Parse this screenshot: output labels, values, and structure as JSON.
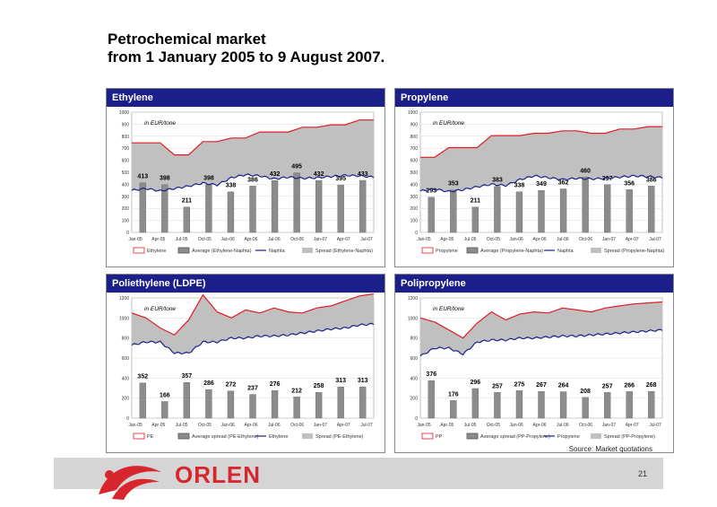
{
  "title_line1": "Petrochemical market",
  "title_line2": "from 1 January 2005 to  9 August 2007.",
  "source": "Source: Market quotations",
  "brand": "ORLEN",
  "page_number": "21",
  "chart_data": [
    {
      "type": "bar",
      "title": "Ethylene",
      "unit_label": "in EUR/tone",
      "ylim": [
        0,
        1000
      ],
      "yticks": [
        0,
        100,
        200,
        300,
        400,
        500,
        600,
        700,
        800,
        900,
        1000
      ],
      "xlabels": [
        "Jan-05",
        "Apr-05",
        "Jul-05",
        "Oct-05",
        "Jan-06",
        "Apr-06",
        "Jul-06",
        "Oct-06",
        "Jan-07",
        "Apr-07",
        "Jul-07"
      ],
      "bar_values": [
        413,
        398,
        211,
        398,
        338,
        386,
        432,
        495,
        432,
        395,
        433
      ],
      "price_series": [
        745,
        745,
        745,
        645,
        645,
        755,
        755,
        785,
        785,
        835,
        835,
        835,
        875,
        875,
        895,
        895,
        935,
        935
      ],
      "feed_series": [
        350,
        365,
        345,
        365,
        385,
        410,
        395,
        455,
        480,
        470,
        445,
        460,
        450,
        455,
        465,
        475,
        470,
        460
      ],
      "legend": [
        "Ethylene",
        "Average (Ethylene-Naphta)",
        "Naphta",
        "Spread (Ethylene-Naphta)"
      ],
      "colors": {
        "price": "#e31b23",
        "feed": "#1b1f8a",
        "spread": "#c0c0c0",
        "bars": "#8c8c8c"
      }
    },
    {
      "type": "bar",
      "title": "Propylene",
      "unit_label": "in EUR/tone",
      "ylim": [
        0,
        1000
      ],
      "yticks": [
        0,
        100,
        200,
        300,
        400,
        500,
        600,
        700,
        800,
        900,
        1000
      ],
      "xlabels": [
        "Jan-05",
        "Apr-05",
        "Jul-05",
        "Oct-05",
        "Jan-06",
        "Apr-06",
        "Jul-06",
        "Oct-06",
        "Jan-07",
        "Apr-07",
        "Jul-07"
      ],
      "bar_values": [
        293,
        353,
        211,
        383,
        338,
        349,
        362,
        460,
        397,
        356,
        386
      ],
      "price_series": [
        625,
        625,
        705,
        705,
        705,
        805,
        805,
        805,
        825,
        825,
        845,
        845,
        825,
        825,
        860,
        860,
        880,
        880
      ],
      "feed_series": [
        345,
        360,
        340,
        355,
        380,
        400,
        390,
        440,
        470,
        455,
        440,
        450,
        445,
        450,
        460,
        470,
        465,
        455
      ],
      "legend": [
        "Propylene",
        "Average (Propylene-Naphta)",
        "Naphta",
        "Spread (Propylene-Naphta)"
      ],
      "colors": {
        "price": "#e31b23",
        "feed": "#1b1f8a",
        "spread": "#c0c0c0",
        "bars": "#8c8c8c"
      }
    },
    {
      "type": "bar",
      "title": "Poliethylene (LDPE)",
      "unit_label": "in EUR/tone",
      "ylim": [
        0,
        1200
      ],
      "yticks": [
        0,
        200,
        400,
        600,
        800,
        1000,
        1200
      ],
      "xlabels": [
        "Jan-05",
        "Apr-05",
        "Jul-05",
        "Oct-05",
        "Jan-06",
        "Apr-06",
        "Jul-06",
        "Oct-06",
        "Jan-07",
        "Apr-07",
        "Jul-07"
      ],
      "bar_values": [
        352,
        166,
        357,
        286,
        272,
        237,
        276,
        212,
        258,
        313,
        313
      ],
      "price_series": [
        1050,
        1000,
        900,
        830,
        980,
        1230,
        1060,
        1000,
        1080,
        1050,
        1100,
        1060,
        1050,
        1100,
        1120,
        1170,
        1220,
        1240
      ],
      "feed_series": [
        730,
        760,
        760,
        650,
        650,
        760,
        760,
        800,
        800,
        820,
        820,
        830,
        850,
        870,
        890,
        900,
        930,
        940
      ],
      "legend": [
        "PE",
        "Average spread (PE-Ethylene)",
        "Ethylene",
        "Spread (PE-Ethylene)"
      ],
      "colors": {
        "price": "#e31b23",
        "feed": "#1b1f8a",
        "spread": "#c0c0c0",
        "bars": "#8c8c8c"
      }
    },
    {
      "type": "bar",
      "title": "Polipropylene",
      "unit_label": "in EUR/tone",
      "ylim": [
        0,
        1200
      ],
      "yticks": [
        0,
        200,
        400,
        600,
        800,
        1000,
        1200
      ],
      "xlabels": [
        "Jan-05",
        "Apr-05",
        "Jul-05",
        "Oct-05",
        "Jan-06",
        "Apr-06",
        "Jul-06",
        "Oct-06",
        "Jan-07",
        "Apr-07",
        "Jul-07"
      ],
      "bar_values": [
        376,
        176,
        296,
        257,
        275,
        267,
        264,
        208,
        257,
        266,
        268
      ],
      "price_series": [
        1000,
        960,
        880,
        800,
        950,
        1060,
        980,
        1040,
        1060,
        1050,
        1100,
        1080,
        1060,
        1100,
        1120,
        1140,
        1150,
        1160
      ],
      "feed_series": [
        620,
        700,
        700,
        640,
        760,
        780,
        780,
        800,
        800,
        810,
        820,
        820,
        830,
        840,
        850,
        860,
        870,
        880
      ],
      "legend": [
        "PP",
        "Average spread (PP-Propylene)",
        "Propylene",
        "Spread (PP-Propylene)"
      ],
      "colors": {
        "price": "#e31b23",
        "feed": "#1b1f8a",
        "spread": "#c0c0c0",
        "bars": "#8c8c8c"
      }
    }
  ]
}
